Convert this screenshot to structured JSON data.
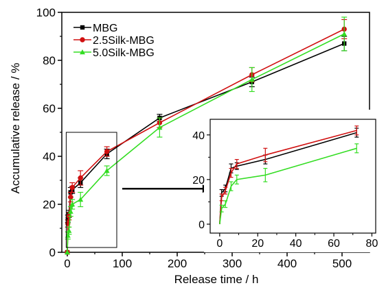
{
  "chart_data": {
    "type": "line",
    "xlabel": "Release time / h",
    "ylabel": "Accumulative release / %",
    "xlim": [
      -10,
      550
    ],
    "ylim": [
      0,
      100
    ],
    "xticks": [
      0,
      100,
      200,
      300,
      400,
      500
    ],
    "yticks": [
      0,
      20,
      40,
      60,
      80,
      100
    ],
    "legend": "top-left",
    "grid": false,
    "series": [
      {
        "name": "MBG",
        "color": "#000000",
        "marker": "square",
        "points": [
          [
            0,
            0
          ],
          [
            1,
            14
          ],
          [
            3,
            16
          ],
          [
            6,
            25
          ],
          [
            9,
            26
          ],
          [
            24,
            29
          ],
          [
            72,
            41
          ],
          [
            168,
            56
          ],
          [
            336,
            71
          ],
          [
            504,
            87
          ]
        ],
        "errors": [
          0,
          1.5,
          1.5,
          2,
          1.5,
          2,
          2,
          1.5,
          2,
          3
        ]
      },
      {
        "name": "2.5Silk-MBG",
        "color": "#d01010",
        "marker": "circle",
        "points": [
          [
            0,
            0
          ],
          [
            1,
            12
          ],
          [
            3,
            15
          ],
          [
            6,
            23
          ],
          [
            9,
            27
          ],
          [
            24,
            31
          ],
          [
            72,
            42
          ],
          [
            168,
            54
          ],
          [
            336,
            74
          ],
          [
            504,
            93
          ]
        ],
        "errors": [
          0,
          1.5,
          1.5,
          2,
          2,
          3,
          2,
          2,
          3,
          4
        ]
      },
      {
        "name": "5.0Silk-MBG",
        "color": "#33dd22",
        "marker": "triangle",
        "points": [
          [
            0,
            0
          ],
          [
            1,
            7
          ],
          [
            3,
            9
          ],
          [
            6,
            17
          ],
          [
            9,
            20
          ],
          [
            24,
            22
          ],
          [
            72,
            34
          ],
          [
            168,
            52
          ],
          [
            336,
            72
          ],
          [
            504,
            91
          ]
        ],
        "errors": [
          0,
          1.5,
          1.5,
          2,
          2,
          3,
          2,
          4,
          5,
          7
        ]
      }
    ],
    "inset": {
      "xlim": [
        -5,
        82
      ],
      "ylim": [
        -4,
        47
      ],
      "xticks": [
        0,
        20,
        40,
        60,
        80
      ],
      "yticks": [
        0,
        20,
        40
      ]
    }
  }
}
